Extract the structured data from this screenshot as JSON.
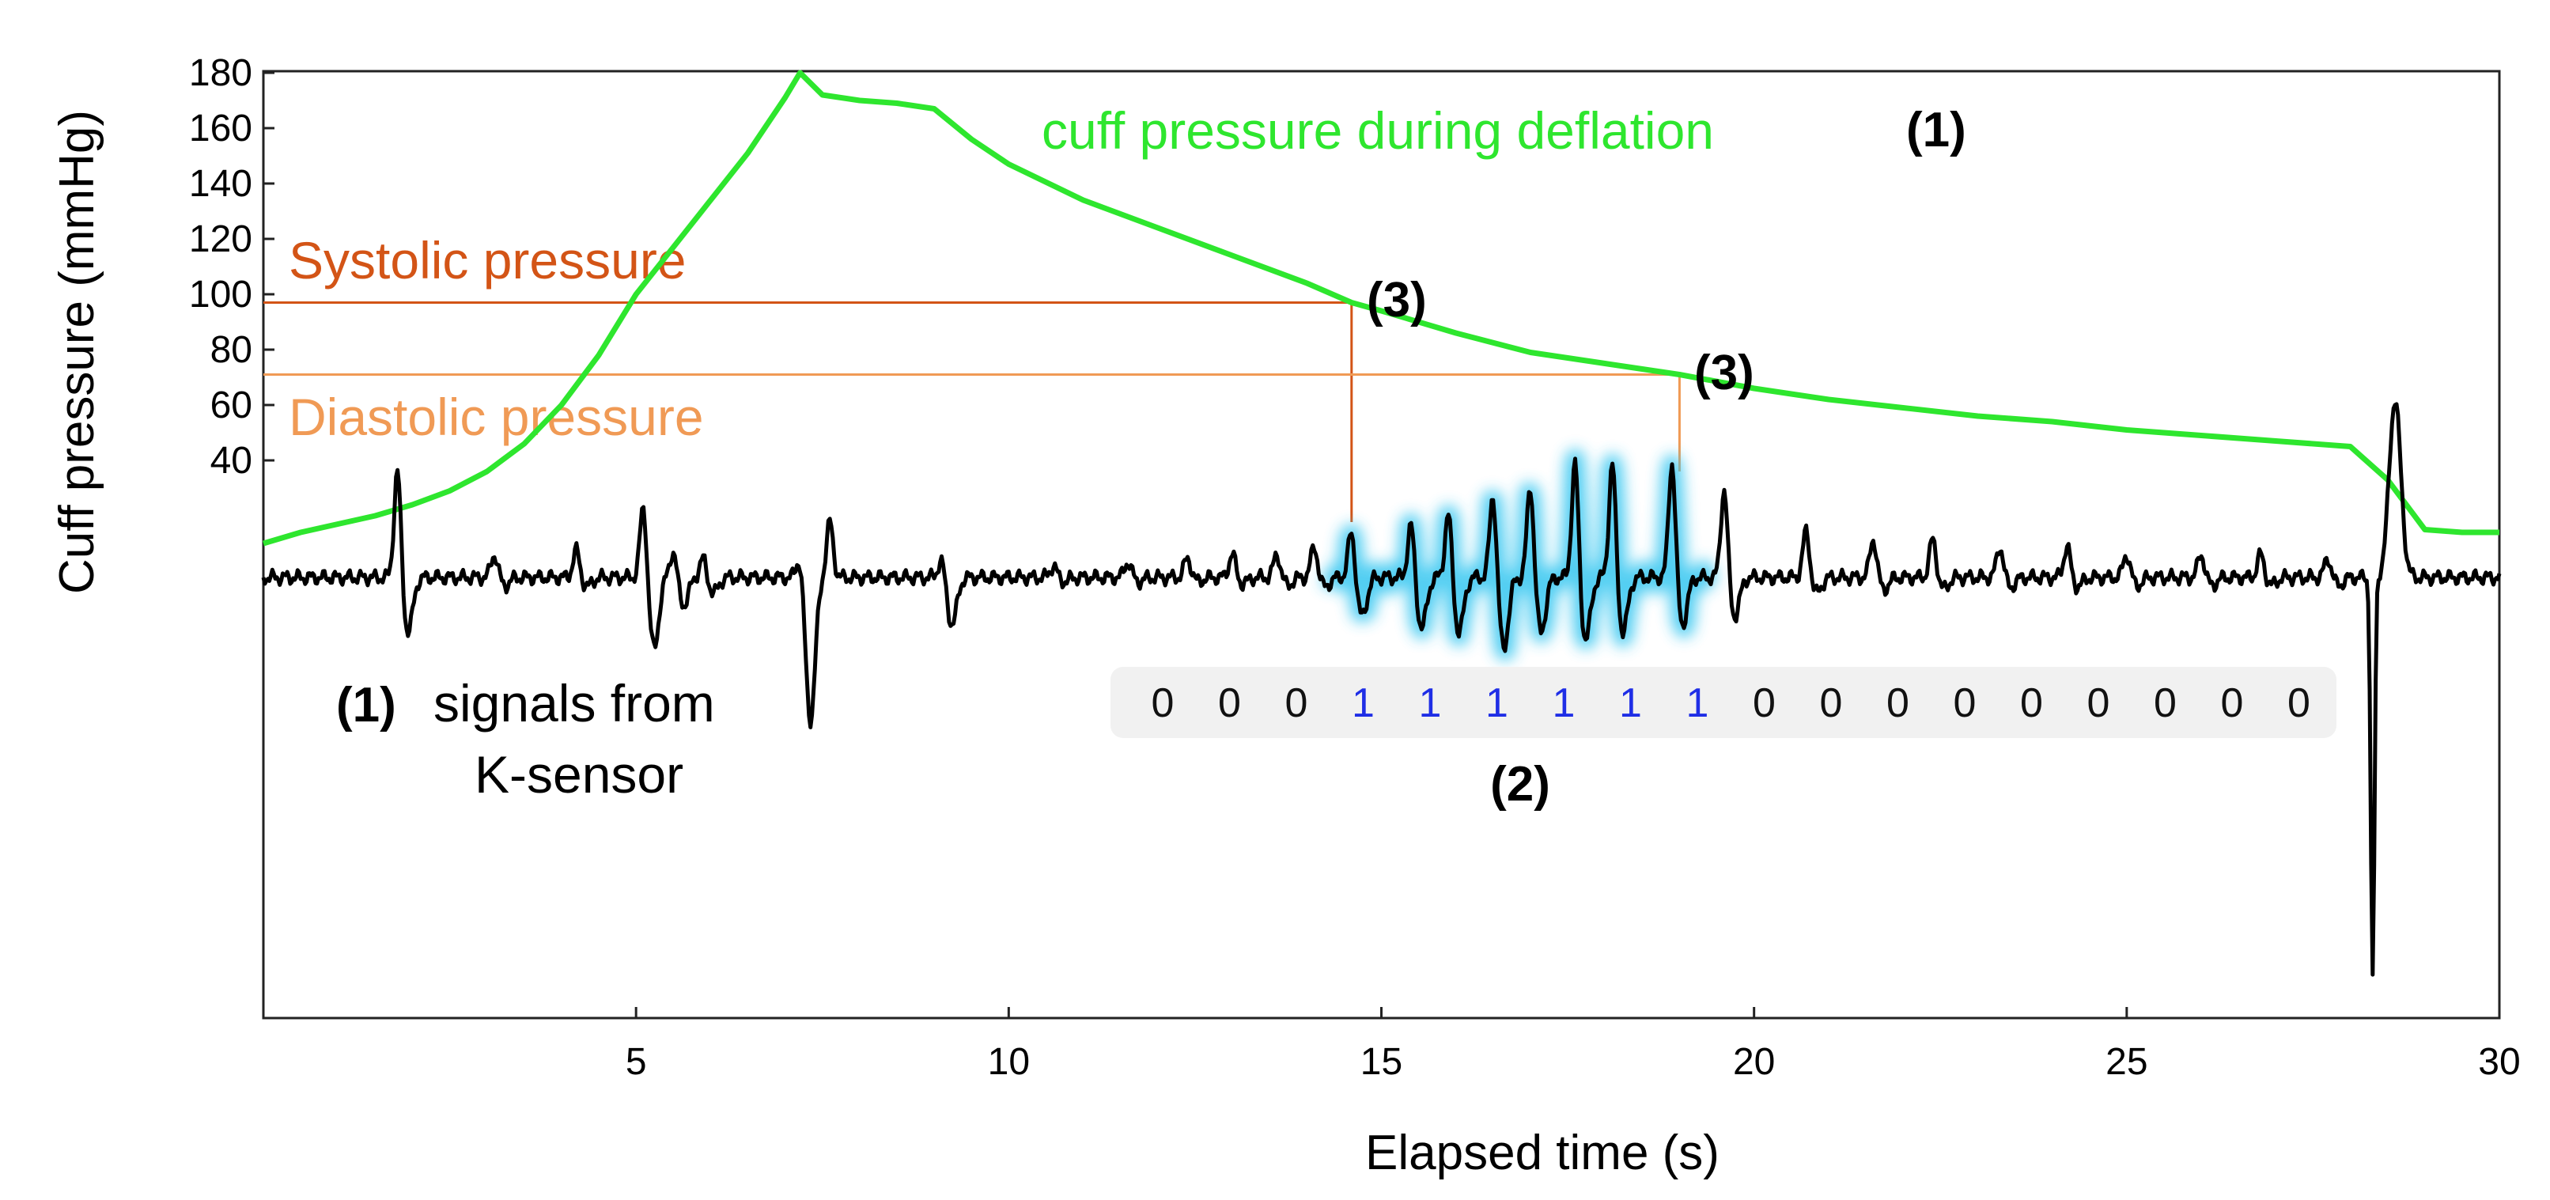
{
  "chart_data": {
    "type": "line",
    "title": "",
    "xlabel": "Elapsed time (s)",
    "ylabel": "Cuff pressure (mmHg)",
    "xlim": [
      0,
      30
    ],
    "ylim": [
      0,
      180
    ],
    "x_ticks": [
      5,
      10,
      15,
      20,
      25,
      30
    ],
    "y_ticks": [
      40,
      60,
      80,
      100,
      120,
      140,
      160,
      180
    ],
    "grid": false,
    "legend": "none",
    "series": [
      {
        "name": "cuff pressure during deflation",
        "color": "#2ee62e",
        "x": [
          0,
          0.5,
          1,
          1.5,
          2,
          2.5,
          3,
          3.5,
          4,
          4.5,
          5,
          5.5,
          6,
          6.5,
          7,
          7.2,
          7.5,
          8,
          8.5,
          9,
          9.5,
          10,
          11,
          12,
          13,
          14,
          14.6,
          15,
          16,
          17,
          18,
          19,
          20,
          21,
          22,
          23,
          24,
          25,
          26,
          27,
          28,
          28.5,
          29,
          29.5,
          30
        ],
        "y": [
          10,
          14,
          17,
          20,
          24,
          29,
          36,
          46,
          60,
          78,
          100,
          117,
          134,
          151,
          171,
          180,
          172,
          170,
          169,
          167,
          156,
          147,
          134,
          124,
          114,
          104,
          97,
          94,
          86,
          79,
          75,
          71,
          66,
          62,
          59,
          56,
          54,
          51,
          49,
          47,
          45,
          33,
          15,
          14,
          14
        ]
      },
      {
        "name": "signals from K-sensor",
        "color": "#000000",
        "note_unitless": true
      }
    ],
    "reference_lines": [
      {
        "label": "Systolic pressure",
        "y": 97,
        "x_end": 14.6,
        "color": "#d35416"
      },
      {
        "label": "Diastolic pressure",
        "y": 71,
        "x_end": 19.0,
        "color": "#f09a55"
      }
    ],
    "annotations": {
      "cuff_label": "cuff pressure during deflation",
      "ksensor_label_num": "(1)",
      "ksensor_label_line1": "signals from",
      "ksensor_label_line2": "K-sensor",
      "marker_1": "(1)",
      "marker_2": "(2)",
      "marker_3a": "(3)",
      "marker_3b": "(3)"
    },
    "beat_sequence": [
      "0",
      "0",
      "0",
      "1",
      "1",
      "1",
      "1",
      "1",
      "1",
      "0",
      "0",
      "0",
      "0",
      "0",
      "0",
      "0",
      "0",
      "0"
    ]
  }
}
